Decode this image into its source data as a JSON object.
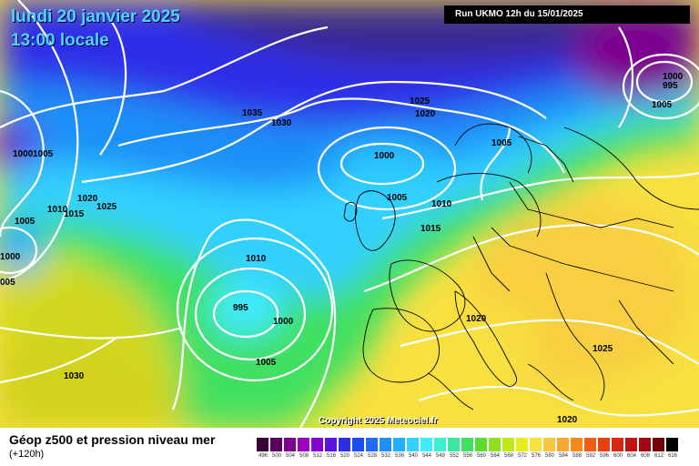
{
  "header": {
    "date": "lundi 20 janvier 2025",
    "time": "13:00 locale",
    "run": "Run UKMO 12h du 15/01/2025"
  },
  "copyright": "Copyright 2025 Meteociel.fr",
  "legend": {
    "title": "Géop z500 et pression niveau mer",
    "subtitle": "(+120h)",
    "scale_values": [
      "496",
      "500",
      "504",
      "508",
      "512",
      "516",
      "520",
      "524",
      "528",
      "532",
      "536",
      "540",
      "544",
      "548",
      "552",
      "556",
      "560",
      "564",
      "568",
      "572",
      "576",
      "580",
      "584",
      "588",
      "592",
      "596",
      "600",
      "604",
      "608",
      "612",
      "616"
    ],
    "scale_colors": [
      "#3a0035",
      "#5a0060",
      "#7d0090",
      "#9d00b8",
      "#8a00d0",
      "#5a14e0",
      "#2d2ee8",
      "#1a4cf0",
      "#1e6cf4",
      "#1e90f8",
      "#20b0ff",
      "#30d0ff",
      "#40ecff",
      "#3ff0d0",
      "#38e8a0",
      "#40e060",
      "#5adc30",
      "#8ee020",
      "#c0e818",
      "#e8ec18",
      "#f8e040",
      "#f8c840",
      "#f8a830",
      "#f88818",
      "#f06010",
      "#e84010",
      "#d82810",
      "#c01410",
      "#a00810",
      "#700408",
      "#000000"
    ]
  },
  "pressure_labels": [
    "1000",
    "995",
    "1005",
    "1035",
    "1030",
    "1025",
    "1020",
    "1000",
    "1005",
    "1005",
    "1010",
    "1015",
    "1000",
    "1005",
    "1020",
    "1025",
    "1010",
    "1015",
    "1005",
    "1000",
    "005",
    "1010",
    "995",
    "1000",
    "1005",
    "1020",
    "1030",
    "1025",
    "1020"
  ],
  "icons": [
    "contour-lines",
    "country-borders"
  ]
}
